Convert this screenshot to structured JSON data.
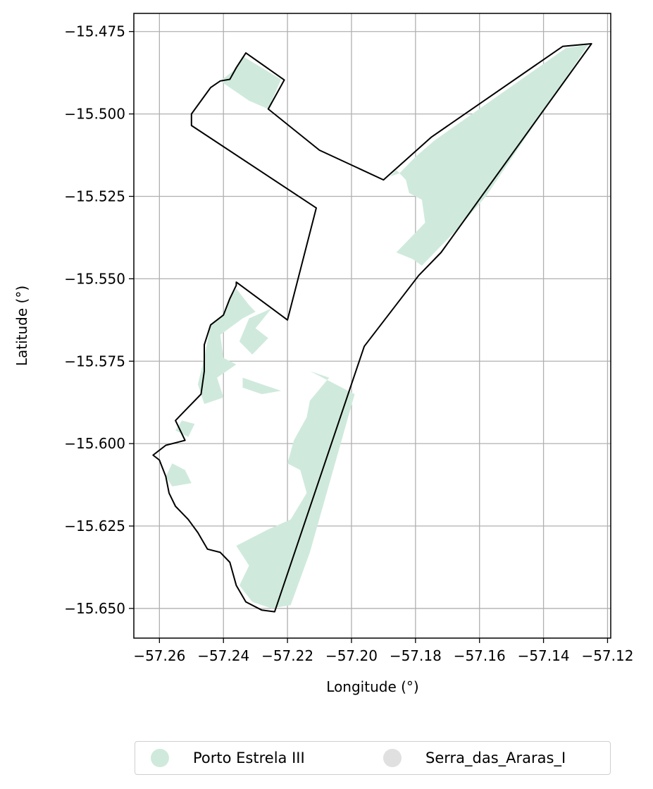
{
  "chart_data": {
    "type": "map",
    "xlabel": "Longitude (°)",
    "ylabel": "Latitude (°)",
    "xlim": [
      -57.268,
      -57.119
    ],
    "ylim": [
      -15.659,
      -15.4695
    ],
    "x_ticks": [
      -57.26,
      -57.24,
      -57.22,
      -57.2,
      -57.18,
      -57.16,
      -57.14,
      -57.12
    ],
    "x_tick_labels": [
      "−57.26",
      "−57.24",
      "−57.22",
      "−57.20",
      "−57.18",
      "−57.16",
      "−57.14",
      "−57.12"
    ],
    "y_ticks": [
      -15.475,
      -15.5,
      -15.525,
      -15.55,
      -15.575,
      -15.6,
      -15.625,
      -15.65
    ],
    "y_tick_labels": [
      "−15.475",
      "−15.500",
      "−15.525",
      "−15.550",
      "−15.575",
      "−15.600",
      "−15.625",
      "−15.650"
    ],
    "grid": true,
    "legend_placement": "bottom-center",
    "series": [
      {
        "name": "Porto Estrela III",
        "color": "#cfeadc"
      },
      {
        "name": "Serra_das_Araras_I",
        "color": "#e0e0e0"
      }
    ],
    "boundary_color": "#000000",
    "boundary": [
      [
        -57.233,
        -15.4815
      ],
      [
        -57.221,
        -15.4897
      ],
      [
        -57.226,
        -15.4985
      ],
      [
        -57.21,
        -15.511
      ],
      [
        -57.19,
        -15.52
      ],
      [
        -57.175,
        -15.507
      ],
      [
        -57.134,
        -15.4795
      ],
      [
        -57.125,
        -15.4787
      ],
      [
        -57.172,
        -15.542
      ],
      [
        -57.179,
        -15.549
      ],
      [
        -57.196,
        -15.5705
      ],
      [
        -57.224,
        -15.651
      ],
      [
        -57.228,
        -15.6505
      ],
      [
        -57.233,
        -15.648
      ],
      [
        -57.236,
        -15.643
      ],
      [
        -57.238,
        -15.636
      ],
      [
        -57.241,
        -15.633
      ],
      [
        -57.245,
        -15.632
      ],
      [
        -57.248,
        -15.627
      ],
      [
        -57.251,
        -15.623
      ],
      [
        -57.255,
        -15.619
      ],
      [
        -57.257,
        -15.615
      ],
      [
        -57.258,
        -15.61
      ],
      [
        -57.26,
        -15.605
      ],
      [
        -57.262,
        -15.6035
      ],
      [
        -57.258,
        -15.6005
      ],
      [
        -57.252,
        -15.599
      ],
      [
        -57.255,
        -15.593
      ],
      [
        -57.251,
        -15.589
      ],
      [
        -57.247,
        -15.585
      ],
      [
        -57.246,
        -15.578
      ],
      [
        -57.246,
        -15.57
      ],
      [
        -57.244,
        -15.564
      ],
      [
        -57.24,
        -15.561
      ],
      [
        -57.238,
        -15.556
      ],
      [
        -57.236,
        -15.552
      ],
      [
        -57.236,
        -15.551
      ],
      [
        -57.22,
        -15.5625
      ],
      [
        -57.211,
        -15.5285
      ],
      [
        -57.25,
        -15.5035
      ],
      [
        -57.25,
        -15.5
      ],
      [
        -57.247,
        -15.496
      ],
      [
        -57.244,
        -15.492
      ],
      [
        -57.241,
        -15.49
      ],
      [
        -57.238,
        -15.4895
      ],
      [
        -57.236,
        -15.486
      ],
      [
        -57.234,
        -15.483
      ]
    ],
    "forest_areas": [
      [
        [
          -57.234,
          -15.4825
        ],
        [
          -57.222,
          -15.4895
        ],
        [
          -57.226,
          -15.4985
        ],
        [
          -57.232,
          -15.496
        ],
        [
          -57.238,
          -15.492
        ],
        [
          -57.241,
          -15.49
        ],
        [
          -57.237,
          -15.487
        ]
      ],
      [
        [
          -57.174,
          -15.508
        ],
        [
          -57.133,
          -15.48
        ],
        [
          -57.126,
          -15.479
        ],
        [
          -57.158,
          -15.525
        ],
        [
          -57.167,
          -15.535
        ],
        [
          -57.178,
          -15.546
        ],
        [
          -57.181,
          -15.544
        ],
        [
          -57.186,
          -15.542
        ],
        [
          -57.181,
          -15.537
        ],
        [
          -57.177,
          -15.533
        ],
        [
          -57.178,
          -15.526
        ],
        [
          -57.182,
          -15.524
        ],
        [
          -57.183,
          -15.52
        ],
        [
          -57.186,
          -15.517
        ],
        [
          -57.188,
          -15.519
        ],
        [
          -57.185,
          -15.518
        ],
        [
          -57.18,
          -15.513
        ]
      ],
      [
        [
          -57.236,
          -15.553
        ],
        [
          -57.232,
          -15.558
        ],
        [
          -57.23,
          -15.56
        ],
        [
          -57.234,
          -15.562
        ],
        [
          -57.241,
          -15.567
        ],
        [
          -57.24,
          -15.574
        ],
        [
          -57.236,
          -15.576
        ],
        [
          -57.242,
          -15.58
        ],
        [
          -57.24,
          -15.586
        ],
        [
          -57.246,
          -15.588
        ],
        [
          -57.248,
          -15.582
        ],
        [
          -57.246,
          -15.574
        ],
        [
          -57.244,
          -15.564
        ],
        [
          -57.24,
          -15.561
        ],
        [
          -57.238,
          -15.556
        ]
      ],
      [
        [
          -57.225,
          -15.559
        ],
        [
          -57.23,
          -15.565
        ],
        [
          -57.226,
          -15.568
        ],
        [
          -57.231,
          -15.573
        ],
        [
          -57.235,
          -15.569
        ],
        [
          -57.232,
          -15.562
        ]
      ],
      [
        [
          -57.234,
          -15.58
        ],
        [
          -57.228,
          -15.582
        ],
        [
          -57.222,
          -15.584
        ],
        [
          -57.228,
          -15.585
        ],
        [
          -57.234,
          -15.583
        ]
      ],
      [
        [
          -57.213,
          -15.578
        ],
        [
          -57.199,
          -15.585
        ],
        [
          -57.213,
          -15.633
        ],
        [
          -57.219,
          -15.649
        ],
        [
          -57.225,
          -15.65
        ],
        [
          -57.231,
          -15.648
        ],
        [
          -57.235,
          -15.643
        ],
        [
          -57.232,
          -15.637
        ],
        [
          -57.236,
          -15.631
        ],
        [
          -57.226,
          -15.626
        ],
        [
          -57.219,
          -15.623
        ],
        [
          -57.214,
          -15.615
        ],
        [
          -57.216,
          -15.608
        ],
        [
          -57.22,
          -15.606
        ],
        [
          -57.218,
          -15.599
        ],
        [
          -57.214,
          -15.592
        ],
        [
          -57.213,
          -15.587
        ],
        [
          -57.207,
          -15.58
        ]
      ],
      [
        [
          -57.252,
          -15.608
        ],
        [
          -57.25,
          -15.612
        ],
        [
          -57.256,
          -15.613
        ],
        [
          -57.258,
          -15.61
        ],
        [
          -57.256,
          -15.606
        ]
      ],
      [
        [
          -57.253,
          -15.593
        ],
        [
          -57.249,
          -15.594
        ],
        [
          -57.251,
          -15.598
        ],
        [
          -57.255,
          -15.596
        ]
      ]
    ]
  },
  "legend": {
    "items": [
      {
        "label": "Porto Estrela III",
        "color": "#cfeadc"
      },
      {
        "label": "Serra_das_Araras_I",
        "color": "#e0e0e0"
      }
    ]
  }
}
